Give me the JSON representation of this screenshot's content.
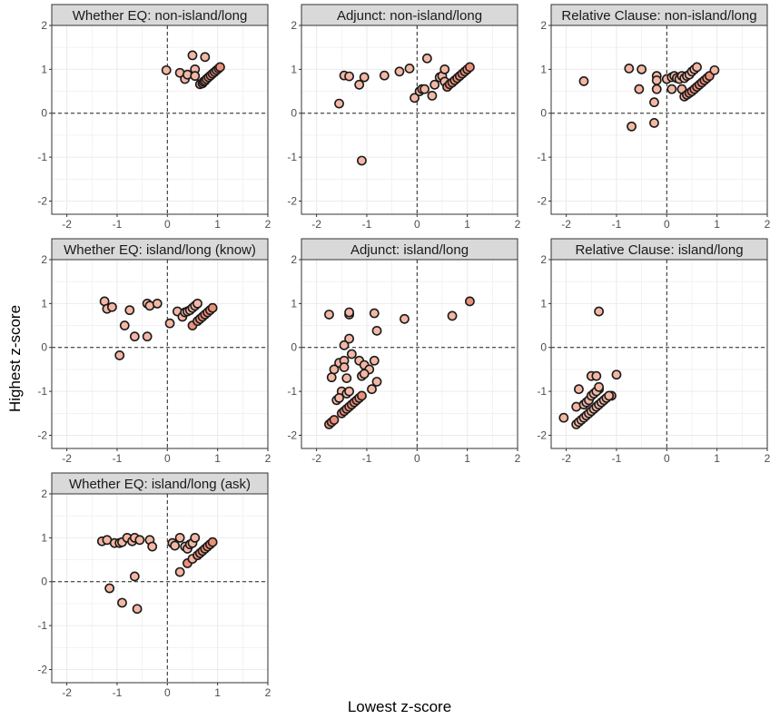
{
  "chart_data": {
    "type": "scatter",
    "xlabel": "Lowest z-score",
    "ylabel": "Highest z-score",
    "xlim": [
      -2.3,
      2.0
    ],
    "ylim": [
      -2.3,
      2.0
    ],
    "x_ticks": [
      -2,
      -1,
      0,
      1,
      2
    ],
    "y_ticks": [
      -2,
      -1,
      0,
      1,
      2
    ],
    "reference_lines": {
      "x": 0,
      "y": 0,
      "style": "dashed"
    },
    "grid": true,
    "colors": {
      "point_fill": "#f4b7a4",
      "point_fill_dark": "#ec8f79",
      "point_stroke": "#1a1a1a",
      "strip_bg": "#d9d9d9",
      "grid": "#ebebeb"
    },
    "panels": [
      {
        "title": "Whether EQ: non-island/long",
        "points": [
          [
            -0.02,
            0.98
          ],
          [
            0.25,
            0.92
          ],
          [
            0.35,
            0.78
          ],
          [
            0.4,
            0.88
          ],
          [
            0.5,
            1.32
          ],
          [
            0.55,
            1.0
          ],
          [
            0.75,
            1.28
          ],
          [
            0.55,
            0.85
          ],
          [
            0.65,
            0.66
          ],
          [
            0.7,
            0.68
          ],
          [
            0.72,
            0.72
          ],
          [
            0.75,
            0.74
          ],
          [
            0.78,
            0.78
          ],
          [
            0.82,
            0.82
          ],
          [
            0.86,
            0.86
          ],
          [
            0.9,
            0.9
          ],
          [
            0.94,
            0.94
          ],
          [
            0.98,
            0.98
          ],
          [
            1.02,
            1.02
          ],
          [
            1.05,
            1.05
          ]
        ]
      },
      {
        "title": "Adjunct: non-island/long",
        "points": [
          [
            -1.55,
            0.22
          ],
          [
            -1.45,
            0.86
          ],
          [
            -1.35,
            0.84
          ],
          [
            -1.15,
            0.65
          ],
          [
            -1.05,
            0.82
          ],
          [
            -0.65,
            0.86
          ],
          [
            -0.35,
            0.95
          ],
          [
            -0.15,
            1.02
          ],
          [
            0.2,
            1.25
          ],
          [
            -0.05,
            0.35
          ],
          [
            0.05,
            0.5
          ],
          [
            0.1,
            0.55
          ],
          [
            0.15,
            0.55
          ],
          [
            0.3,
            0.4
          ],
          [
            0.35,
            0.65
          ],
          [
            0.45,
            0.82
          ],
          [
            0.5,
            0.85
          ],
          [
            0.55,
            0.72
          ],
          [
            0.55,
            1.0
          ],
          [
            0.6,
            0.6
          ],
          [
            0.65,
            0.66
          ],
          [
            0.7,
            0.7
          ],
          [
            0.75,
            0.75
          ],
          [
            0.8,
            0.8
          ],
          [
            0.85,
            0.85
          ],
          [
            0.9,
            0.9
          ],
          [
            0.95,
            0.95
          ],
          [
            1.0,
            1.0
          ],
          [
            1.05,
            1.05
          ],
          [
            -1.1,
            -1.08
          ]
        ]
      },
      {
        "title": "Relative Clause: non-island/long",
        "points": [
          [
            -1.65,
            0.73
          ],
          [
            -0.75,
            1.02
          ],
          [
            -0.5,
            1.0
          ],
          [
            -0.55,
            0.55
          ],
          [
            -0.2,
            0.85
          ],
          [
            -0.2,
            0.75
          ],
          [
            -0.2,
            0.55
          ],
          [
            -0.25,
            0.25
          ],
          [
            -0.7,
            -0.3
          ],
          [
            -0.25,
            -0.22
          ],
          [
            0.0,
            0.78
          ],
          [
            0.1,
            0.82
          ],
          [
            0.15,
            0.85
          ],
          [
            0.2,
            0.8
          ],
          [
            0.25,
            0.78
          ],
          [
            0.3,
            0.85
          ],
          [
            0.35,
            0.8
          ],
          [
            0.4,
            0.85
          ],
          [
            0.45,
            0.88
          ],
          [
            0.5,
            0.95
          ],
          [
            0.55,
            1.0
          ],
          [
            0.6,
            1.05
          ],
          [
            0.1,
            0.55
          ],
          [
            0.3,
            0.55
          ],
          [
            0.35,
            0.38
          ],
          [
            0.4,
            0.42
          ],
          [
            0.45,
            0.46
          ],
          [
            0.5,
            0.5
          ],
          [
            0.55,
            0.55
          ],
          [
            0.6,
            0.6
          ],
          [
            0.65,
            0.65
          ],
          [
            0.7,
            0.7
          ],
          [
            0.75,
            0.75
          ],
          [
            0.8,
            0.8
          ],
          [
            0.85,
            0.85
          ],
          [
            0.95,
            0.98
          ]
        ]
      },
      {
        "title": "Whether EQ: island/long (know)",
        "points": [
          [
            -1.25,
            1.05
          ],
          [
            -1.2,
            0.88
          ],
          [
            -1.1,
            0.92
          ],
          [
            -0.85,
            0.5
          ],
          [
            -0.75,
            0.85
          ],
          [
            -0.65,
            0.25
          ],
          [
            -0.4,
            0.25
          ],
          [
            -0.4,
            1.0
          ],
          [
            -0.35,
            0.95
          ],
          [
            -0.2,
            1.0
          ],
          [
            -0.95,
            -0.18
          ],
          [
            0.05,
            0.55
          ],
          [
            0.2,
            0.82
          ],
          [
            0.3,
            0.7
          ],
          [
            0.35,
            0.8
          ],
          [
            0.4,
            0.82
          ],
          [
            0.45,
            0.85
          ],
          [
            0.5,
            0.9
          ],
          [
            0.55,
            0.95
          ],
          [
            0.6,
            1.0
          ],
          [
            0.5,
            0.5
          ],
          [
            0.6,
            0.6
          ],
          [
            0.65,
            0.65
          ],
          [
            0.7,
            0.7
          ],
          [
            0.75,
            0.75
          ],
          [
            0.8,
            0.8
          ],
          [
            0.85,
            0.85
          ],
          [
            0.9,
            0.9
          ]
        ]
      },
      {
        "title": "Adjunct: island/long",
        "points": [
          [
            -1.75,
            0.75
          ],
          [
            -1.35,
            0.75
          ],
          [
            -1.35,
            0.8
          ],
          [
            -0.85,
            0.78
          ],
          [
            -0.8,
            0.38
          ],
          [
            -0.25,
            0.65
          ],
          [
            0.7,
            0.72
          ],
          [
            1.05,
            1.05
          ],
          [
            -1.45,
            0.05
          ],
          [
            -1.35,
            0.2
          ],
          [
            -1.3,
            -0.15
          ],
          [
            -1.55,
            -0.35
          ],
          [
            -1.45,
            -0.3
          ],
          [
            -1.65,
            -0.5
          ],
          [
            -1.45,
            -0.45
          ],
          [
            -1.15,
            -0.3
          ],
          [
            -1.05,
            -0.4
          ],
          [
            -0.95,
            -0.5
          ],
          [
            -0.85,
            -0.3
          ],
          [
            -1.7,
            -0.68
          ],
          [
            -1.4,
            -0.7
          ],
          [
            -1.1,
            -0.65
          ],
          [
            -1.05,
            -0.6
          ],
          [
            -0.8,
            -0.78
          ],
          [
            -0.9,
            -0.95
          ],
          [
            -1.5,
            -1.0
          ],
          [
            -1.6,
            -1.2
          ],
          [
            -1.55,
            -1.15
          ],
          [
            -1.4,
            -1.05
          ],
          [
            -1.35,
            -1.0
          ],
          [
            -1.75,
            -1.75
          ],
          [
            -1.7,
            -1.7
          ],
          [
            -1.65,
            -1.65
          ],
          [
            -1.5,
            -1.5
          ],
          [
            -1.45,
            -1.45
          ],
          [
            -1.4,
            -1.4
          ],
          [
            -1.35,
            -1.35
          ],
          [
            -1.3,
            -1.3
          ],
          [
            -1.25,
            -1.25
          ],
          [
            -1.2,
            -1.2
          ],
          [
            -1.15,
            -1.15
          ],
          [
            -1.1,
            -1.1
          ]
        ]
      },
      {
        "title": "Relative Clause: island/long",
        "points": [
          [
            -1.35,
            0.82
          ],
          [
            -2.05,
            -1.6
          ],
          [
            -1.8,
            -1.35
          ],
          [
            -1.75,
            -0.95
          ],
          [
            -1.5,
            -0.65
          ],
          [
            -1.4,
            -0.65
          ],
          [
            -1.35,
            -0.95
          ],
          [
            -1.0,
            -0.62
          ],
          [
            -1.1,
            -1.1
          ],
          [
            -1.8,
            -1.75
          ],
          [
            -1.75,
            -1.7
          ],
          [
            -1.7,
            -1.65
          ],
          [
            -1.65,
            -1.6
          ],
          [
            -1.6,
            -1.55
          ],
          [
            -1.55,
            -1.5
          ],
          [
            -1.5,
            -1.45
          ],
          [
            -1.45,
            -1.4
          ],
          [
            -1.4,
            -1.35
          ],
          [
            -1.35,
            -1.3
          ],
          [
            -1.3,
            -1.25
          ],
          [
            -1.25,
            -1.2
          ],
          [
            -1.2,
            -1.15
          ],
          [
            -1.15,
            -1.1
          ],
          [
            -1.65,
            -1.3
          ],
          [
            -1.6,
            -1.25
          ],
          [
            -1.55,
            -1.2
          ],
          [
            -1.5,
            -1.1
          ],
          [
            -1.45,
            -1.05
          ],
          [
            -1.4,
            -1.0
          ],
          [
            -1.35,
            -0.9
          ]
        ]
      },
      {
        "title": "Whether EQ: island/long (ask)",
        "points": [
          [
            -1.3,
            0.92
          ],
          [
            -1.2,
            0.95
          ],
          [
            -1.05,
            0.88
          ],
          [
            -0.95,
            0.88
          ],
          [
            -0.9,
            0.9
          ],
          [
            -0.8,
            1.0
          ],
          [
            -0.7,
            0.92
          ],
          [
            -0.65,
            1.0
          ],
          [
            -0.55,
            0.95
          ],
          [
            -0.35,
            0.95
          ],
          [
            -0.3,
            0.8
          ],
          [
            -1.15,
            -0.15
          ],
          [
            -0.9,
            -0.48
          ],
          [
            -0.65,
            0.12
          ],
          [
            -0.6,
            -0.62
          ],
          [
            0.1,
            0.88
          ],
          [
            0.15,
            0.82
          ],
          [
            0.25,
            1.0
          ],
          [
            0.25,
            0.22
          ],
          [
            0.35,
            0.8
          ],
          [
            0.4,
            0.75
          ],
          [
            0.45,
            0.85
          ],
          [
            0.5,
            0.88
          ],
          [
            0.55,
            1.0
          ],
          [
            0.4,
            0.42
          ],
          [
            0.5,
            0.52
          ],
          [
            0.6,
            0.6
          ],
          [
            0.65,
            0.65
          ],
          [
            0.7,
            0.7
          ],
          [
            0.75,
            0.75
          ],
          [
            0.8,
            0.8
          ],
          [
            0.85,
            0.85
          ],
          [
            0.9,
            0.9
          ]
        ]
      }
    ]
  }
}
